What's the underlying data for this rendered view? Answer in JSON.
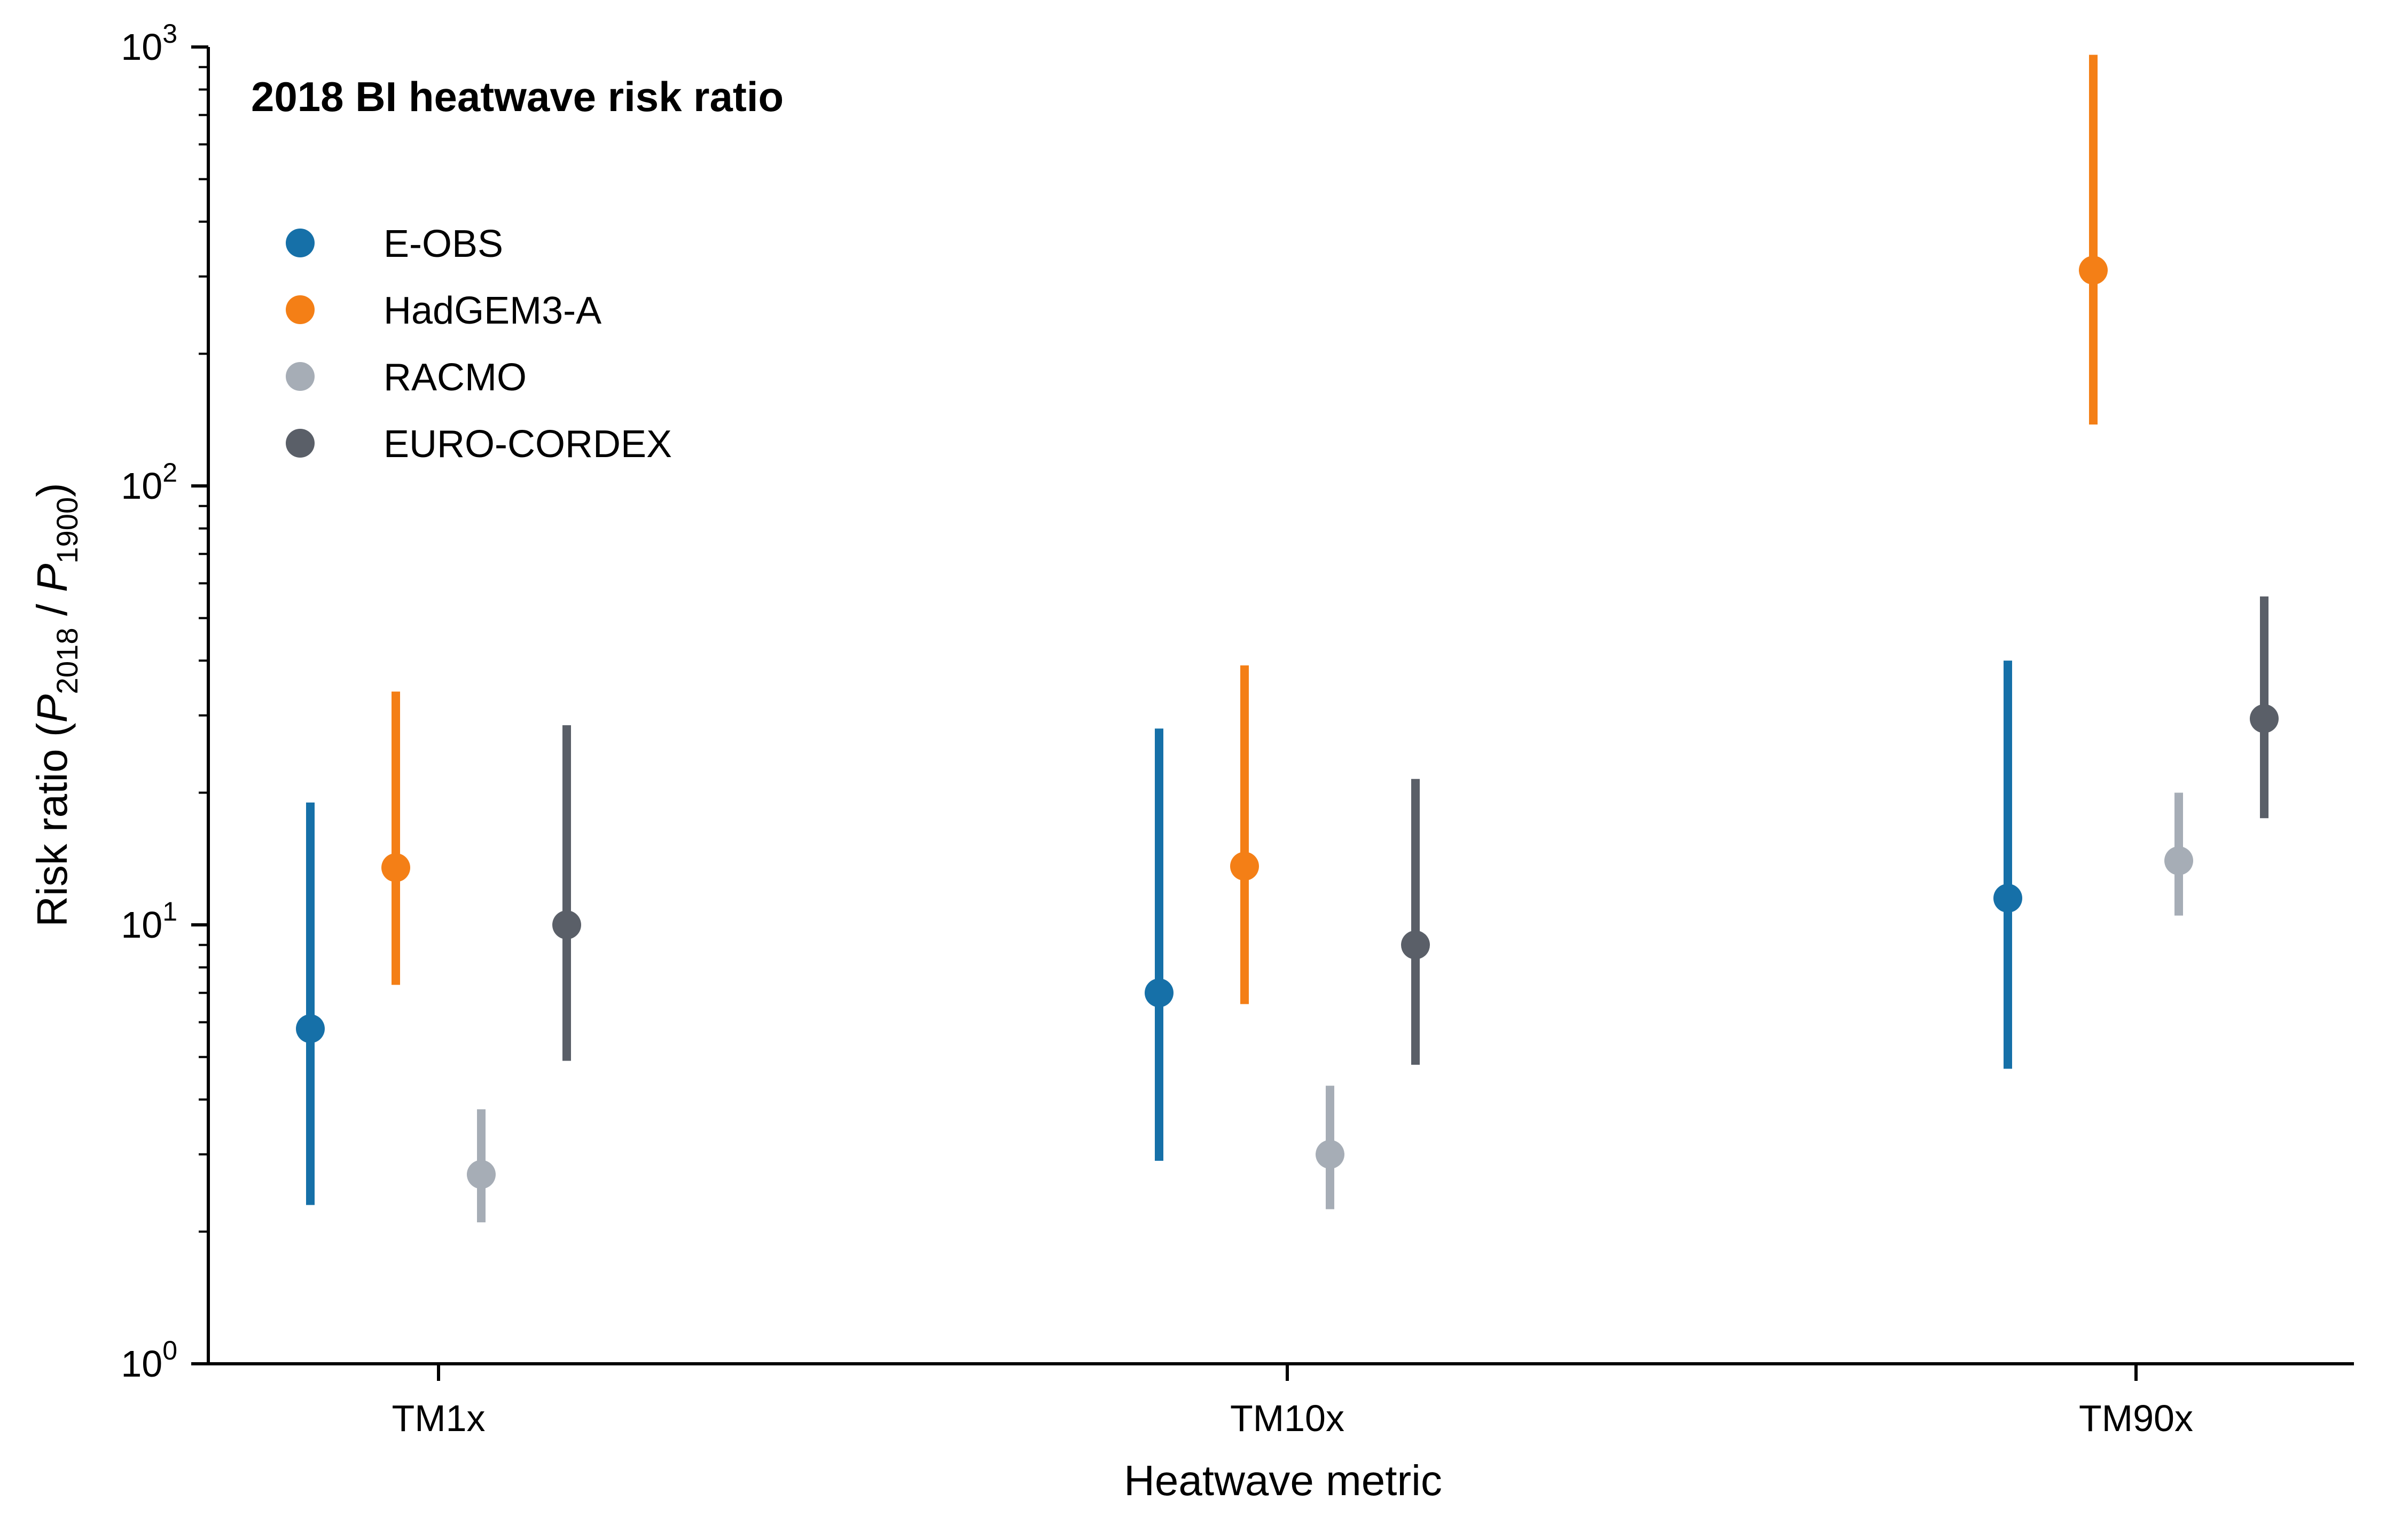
{
  "chart_data": {
    "type": "scatter",
    "title": "2018 BI heatwave risk ratio",
    "xlabel": "Heatwave metric",
    "ylabel": {
      "prefix": "Risk ratio (",
      "num_var": "P",
      "num_sub": "2018",
      "sep": " / ",
      "den_var": "P",
      "den_sub": "1900",
      "suffix": ")"
    },
    "yscale": "log",
    "ylim": [
      1,
      1000
    ],
    "yticks": [
      {
        "value": 1,
        "base": "10",
        "exp": "0"
      },
      {
        "value": 10,
        "base": "10",
        "exp": "1"
      },
      {
        "value": 100,
        "base": "10",
        "exp": "2"
      },
      {
        "value": 1000,
        "base": "10",
        "exp": "3"
      }
    ],
    "categories": [
      "TM1x",
      "TM10x",
      "TM90x"
    ],
    "grid": false,
    "legend_position": "upper-left",
    "series": [
      {
        "name": "E-OBS",
        "color": "#1670a8",
        "values": [
          5.8,
          7.0,
          11.5
        ],
        "lower": [
          2.3,
          2.9,
          4.7
        ],
        "upper": [
          19,
          28,
          40
        ]
      },
      {
        "name": "HadGEM3-A",
        "color": "#f47f16",
        "values": [
          13.5,
          13.6,
          310
        ],
        "lower": [
          7.3,
          6.6,
          138
        ],
        "upper": [
          34,
          39,
          960
        ]
      },
      {
        "name": "RACMO",
        "color": "#a6adb6",
        "values": [
          2.7,
          3.0,
          14.0
        ],
        "lower": [
          2.1,
          2.25,
          10.5
        ],
        "upper": [
          3.8,
          4.3,
          20
        ]
      },
      {
        "name": "EURO-CORDEX",
        "color": "#5a5f68",
        "values": [
          10.0,
          9.0,
          29.5
        ],
        "lower": [
          4.9,
          4.8,
          17.5
        ],
        "upper": [
          28.5,
          21.5,
          56
        ]
      }
    ]
  }
}
